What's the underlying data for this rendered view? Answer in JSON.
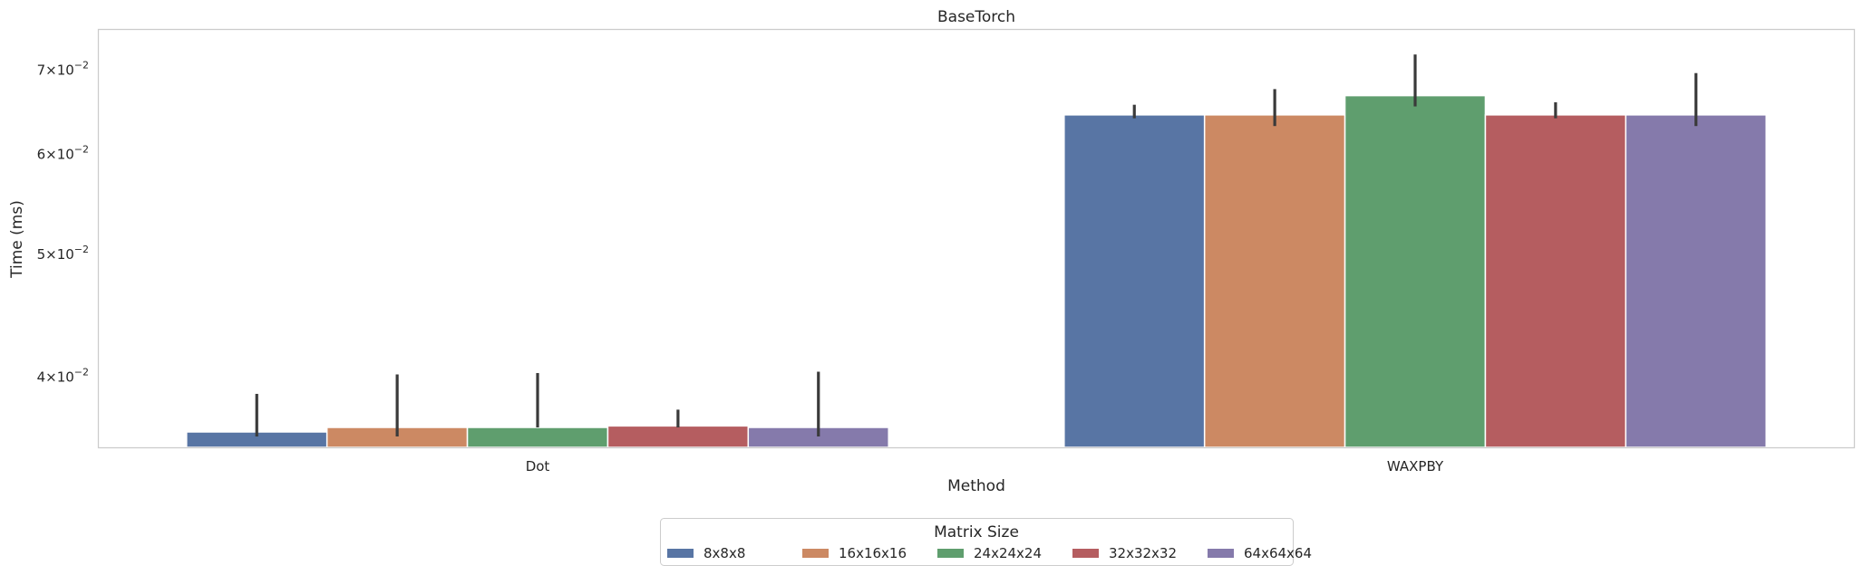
{
  "chart_data": {
    "type": "bar",
    "title": "BaseTorch",
    "xlabel": "Method",
    "ylabel": "Time (ms)",
    "yscale": "log",
    "ylim": [
      0.0352,
      0.0753
    ],
    "yticks": [
      {
        "value": 0.04,
        "mantissa": "4",
        "exponent": "−2"
      },
      {
        "value": 0.05,
        "mantissa": "5",
        "exponent": "−2"
      },
      {
        "value": 0.06,
        "mantissa": "6",
        "exponent": "−2"
      },
      {
        "value": 0.07,
        "mantissa": "7",
        "exponent": "−2"
      }
    ],
    "tick_times": "×",
    "tick_base": "10",
    "grid": false,
    "categories": [
      "Dot",
      "WAXPBY"
    ],
    "legend": {
      "title": "Matrix Size",
      "placement": "bottom-center"
    },
    "series": [
      {
        "name": "8x8x8",
        "color": "#5875a4",
        "values": [
          0.0362,
          0.0645
        ],
        "errors": [
          [
            0.0359,
            0.0388
          ],
          [
            0.0641,
            0.0657
          ]
        ]
      },
      {
        "name": "16x16x16",
        "color": "#cc8963",
        "values": [
          0.0365,
          0.0645
        ],
        "errors": [
          [
            0.0359,
            0.0402
          ],
          [
            0.0632,
            0.0676
          ]
        ]
      },
      {
        "name": "24x24x24",
        "color": "#5f9e6e",
        "values": [
          0.0365,
          0.0668
        ],
        "errors": [
          [
            0.0365,
            0.0403
          ],
          [
            0.0655,
            0.072
          ]
        ]
      },
      {
        "name": "32x32x32",
        "color": "#b55d60",
        "values": [
          0.0366,
          0.0645
        ],
        "errors": [
          [
            0.0365,
            0.0377
          ],
          [
            0.0641,
            0.066
          ]
        ]
      },
      {
        "name": "64x64x64",
        "color": "#857aab",
        "values": [
          0.0365,
          0.0645
        ],
        "errors": [
          [
            0.0359,
            0.0404
          ],
          [
            0.0632,
            0.0696
          ]
        ]
      }
    ]
  }
}
